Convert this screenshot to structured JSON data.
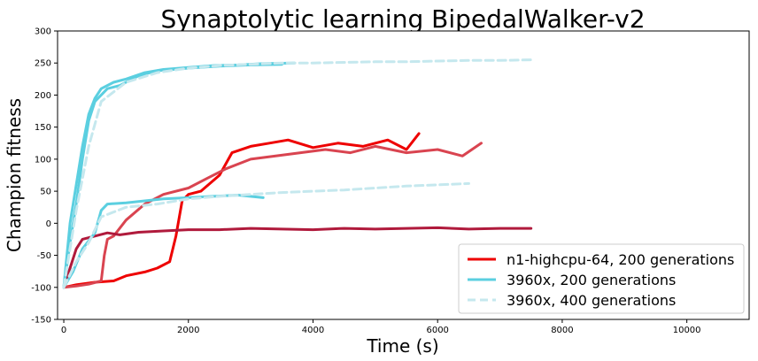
{
  "chart_data": {
    "type": "line",
    "title": "Synaptolytic learning BipedalWalker-v2",
    "xlabel": "Time (s)",
    "ylabel": "Champion fitness",
    "xlim": [
      -100,
      11000
    ],
    "ylim": [
      -150,
      300
    ],
    "xticks": [
      0,
      2000,
      4000,
      6000,
      8000,
      10000
    ],
    "yticks": [
      -150,
      -100,
      -50,
      0,
      50,
      100,
      150,
      200,
      250,
      300
    ],
    "grid": false,
    "legend": {
      "placement": "lower-right",
      "entries": [
        {
          "label": "n1-highcpu-64, 200 generations",
          "color": "#ee0000",
          "style": "solid"
        },
        {
          "label": "3960x, 200 generations",
          "color": "#5bcfe0",
          "style": "solid"
        },
        {
          "label": "3960x, 400 generations",
          "color": "#c5e8ee",
          "style": "dashed"
        }
      ]
    },
    "series": [
      {
        "color": "#ee0000",
        "style": "solid",
        "x": [
          0,
          200,
          500,
          800,
          1000,
          1300,
          1500,
          1700,
          1800,
          1900,
          2000,
          2200,
          2500,
          2700,
          3000,
          3300,
          3600,
          4000,
          4400,
          4800,
          5200,
          5500,
          5700
        ],
        "y": [
          -100,
          -96,
          -92,
          -90,
          -82,
          -76,
          -70,
          -60,
          -20,
          35,
          45,
          50,
          75,
          110,
          120,
          125,
          130,
          118,
          125,
          120,
          130,
          115,
          140
        ]
      },
      {
        "color": "#d94450",
        "style": "solid",
        "x": [
          0,
          200,
          400,
          600,
          650,
          700,
          800,
          1000,
          1300,
          1600,
          2000,
          2300,
          2600,
          3000,
          3400,
          3800,
          4200,
          4600,
          5000,
          5500,
          6000,
          6400,
          6700
        ],
        "y": [
          -100,
          -98,
          -95,
          -90,
          -50,
          -25,
          -20,
          5,
          30,
          45,
          55,
          70,
          85,
          100,
          105,
          110,
          115,
          110,
          120,
          110,
          115,
          105,
          125
        ]
      },
      {
        "color": "#b01a3c",
        "style": "solid",
        "x": [
          0,
          100,
          200,
          300,
          500,
          700,
          900,
          1200,
          1600,
          2000,
          2500,
          3000,
          3500,
          4000,
          4500,
          5000,
          5500,
          6000,
          6500,
          7000,
          7500
        ],
        "y": [
          -100,
          -70,
          -40,
          -25,
          -20,
          -15,
          -18,
          -14,
          -12,
          -10,
          -10,
          -8,
          -9,
          -10,
          -8,
          -9,
          -8,
          -7,
          -9,
          -8,
          -8
        ]
      },
      {
        "color": "#5bcfe0",
        "style": "solid",
        "x": [
          0,
          100,
          200,
          300,
          400,
          500,
          600,
          800,
          1000,
          1300,
          1600,
          2000,
          2400,
          2800,
          3200,
          3700
        ],
        "y": [
          -100,
          0,
          60,
          120,
          170,
          195,
          210,
          220,
          225,
          235,
          240,
          243,
          246,
          247,
          249,
          250
        ]
      },
      {
        "color": "#5bcfe0",
        "style": "solid",
        "x": [
          0,
          100,
          200,
          300,
          400,
          500,
          700,
          900,
          1200,
          1500,
          2000,
          2500,
          3000,
          3500
        ],
        "y": [
          -100,
          -30,
          30,
          100,
          160,
          190,
          210,
          215,
          230,
          238,
          242,
          245,
          247,
          248
        ]
      },
      {
        "color": "#5bcfe0",
        "style": "solid",
        "x": [
          0,
          150,
          300,
          500,
          600,
          700,
          1000,
          1300,
          1600,
          2000,
          2400,
          2800,
          3200
        ],
        "y": [
          -100,
          -75,
          -40,
          -15,
          20,
          30,
          32,
          35,
          38,
          40,
          42,
          44,
          40
        ]
      },
      {
        "color": "#c5e8ee",
        "style": "dashed",
        "x": [
          0,
          200,
          400,
          600,
          1000,
          1500,
          2000,
          2500,
          3000,
          3500,
          4000,
          4500,
          5000,
          5500,
          6000,
          6500,
          7000,
          7500
        ],
        "y": [
          -100,
          20,
          120,
          190,
          220,
          235,
          242,
          246,
          248,
          250,
          250,
          251,
          252,
          252,
          253,
          254,
          254,
          255
        ]
      },
      {
        "color": "#c5e8ee",
        "style": "dashed",
        "x": [
          0,
          200,
          400,
          600,
          1000,
          1500,
          2000,
          2500,
          3000,
          3500,
          4000,
          4500,
          5000,
          5500,
          6000,
          6500
        ],
        "y": [
          -100,
          -60,
          -30,
          10,
          25,
          30,
          38,
          42,
          45,
          48,
          50,
          52,
          55,
          58,
          60,
          62
        ]
      }
    ]
  }
}
